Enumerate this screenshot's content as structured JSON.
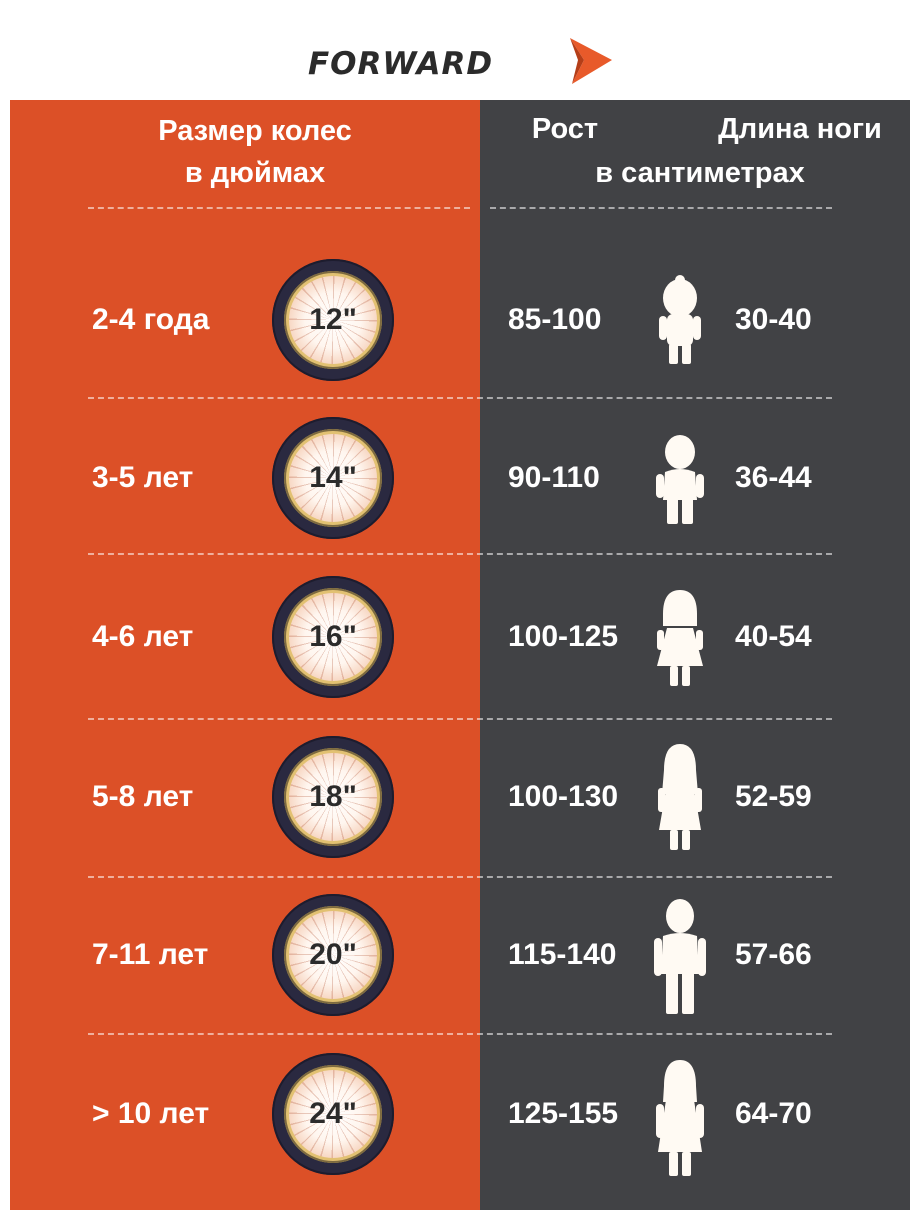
{
  "brand": {
    "name": "FORWARD",
    "text_color": "#2b2b2b",
    "arrow_color": "#e85a2a"
  },
  "colors": {
    "left_panel": "#dc5027",
    "right_panel": "#414245",
    "text": "#ffffff"
  },
  "header": {
    "wheel_size_line1": "Размер колес",
    "wheel_size_line2": "в дюймах",
    "height": "Рост",
    "leg_length": "Длина ноги",
    "units": "в сантиметрах"
  },
  "rows": [
    {
      "age": "2-4 года",
      "wheel": "12\"",
      "height": "85-100",
      "leg": "30-40",
      "icon": "toddler-icon"
    },
    {
      "age": "3-5 лет",
      "wheel": "14\"",
      "height": "90-110",
      "leg": "36-44",
      "icon": "boy-icon"
    },
    {
      "age": "4-6 лет",
      "wheel": "16\"",
      "height": "100-125",
      "leg": "40-54",
      "icon": "girl-icon"
    },
    {
      "age": "5-8 лет",
      "wheel": "18\"",
      "height": "100-130",
      "leg": "52-59",
      "icon": "girl-long-hair-icon"
    },
    {
      "age": "7-11 лет",
      "wheel": "20\"",
      "height": "115-140",
      "leg": "57-66",
      "icon": "boy-icon"
    },
    {
      "age": "> 10 лет",
      "wheel": "24\"",
      "height": "125-155",
      "leg": "64-70",
      "icon": "girl-icon"
    }
  ]
}
